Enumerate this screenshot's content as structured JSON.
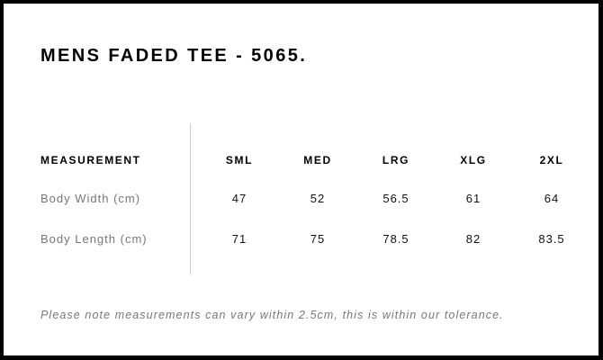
{
  "title": "MENS FADED TEE - 5065.",
  "table": {
    "header": [
      "MEASUREMENT",
      "SML",
      "MED",
      "LRG",
      "XLG",
      "2XL"
    ],
    "rows": [
      {
        "label": "Body Width (cm)",
        "values": [
          "47",
          "52",
          "56.5",
          "61",
          "64"
        ]
      },
      {
        "label": "Body Length (cm)",
        "values": [
          "71",
          "75",
          "78.5",
          "82",
          "83.5"
        ]
      }
    ]
  },
  "note": "Please note measurements can vary within 2.5cm, this is within our tolerance."
}
